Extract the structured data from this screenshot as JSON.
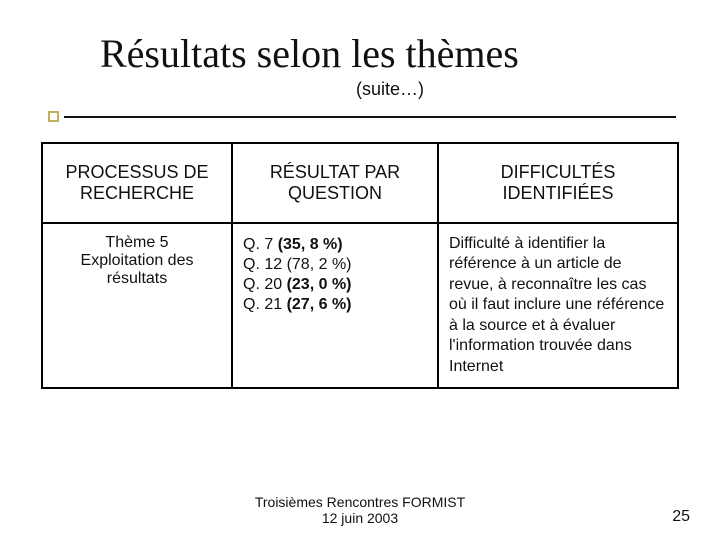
{
  "title": "Résultats selon les thèmes",
  "subtitle": "(suite…)",
  "table": {
    "headers": [
      "PROCESSUS DE RECHERCHE",
      "RÉSULTAT PAR QUESTION",
      "DIFFICULTÉS IDENTIFIÉES"
    ],
    "row": {
      "theme_number": "Thème 5",
      "theme_label": "Exploitation des résultats",
      "questions": [
        {
          "prefix": "Q. 7",
          "value": "(35, 8 %)",
          "bold": true
        },
        {
          "prefix": "Q. 12",
          "value": "(78, 2 %)",
          "bold": false
        },
        {
          "prefix": "Q. 20",
          "value": "(23, 0 %)",
          "bold": true
        },
        {
          "prefix": "Q. 21",
          "value": "(27, 6 %)",
          "bold": true
        }
      ],
      "difficulty": "Difficulté à identifier la référence à un article de revue, à reconnaître les cas où il faut inclure une référence à la source et à évaluer l'information trouvée dans Internet"
    }
  },
  "footer_line1": "Troisièmes Rencontres FORMIST",
  "footer_line2": "12 juin 2003",
  "page_number": "25",
  "colors": {
    "accent_box_border": "#c0b060",
    "text": "#111111",
    "background": "#ffffff"
  }
}
